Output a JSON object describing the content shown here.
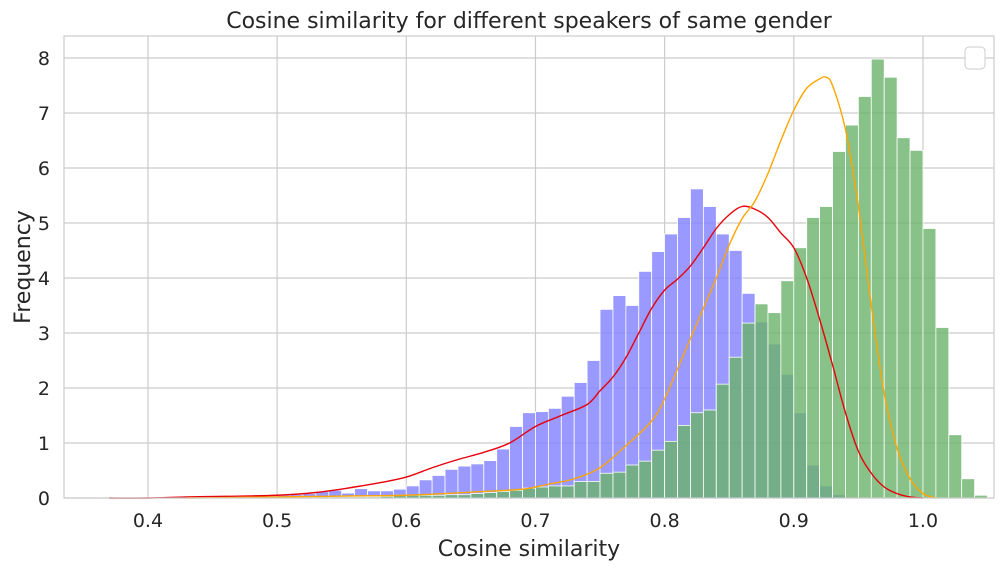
{
  "chart_data": {
    "type": "histogram",
    "title": "Cosine similarity for different speakers of same gender",
    "xlabel": "Cosine similarity",
    "ylabel": "Frequency",
    "xlim": [
      0.335,
      1.055
    ],
    "ylim": [
      0,
      8.4
    ],
    "xticks": [
      "0.4",
      "0.5",
      "0.6",
      "0.7",
      "0.8",
      "0.9",
      "1.0"
    ],
    "yticks": [
      "0",
      "1",
      "2",
      "3",
      "4",
      "5",
      "6",
      "7",
      "8"
    ],
    "grid": true,
    "legend": "top-right",
    "legend_entries": [],
    "bin_width": 0.01,
    "series": [
      {
        "color": "#8080ff",
        "bin_start": 0.36,
        "values": [
          0.01,
          0.01,
          0.01,
          0.01,
          0.01,
          0.01,
          0.02,
          0.02,
          0.02,
          0.02,
          0.02,
          0.02,
          0.03,
          0.04,
          0.05,
          0.06,
          0.08,
          0.12,
          0.14,
          0.09,
          0.17,
          0.13,
          0.13,
          0.16,
          0.22,
          0.33,
          0.41,
          0.52,
          0.58,
          0.62,
          0.68,
          0.89,
          1.3,
          1.55,
          1.57,
          1.63,
          1.85,
          2.1,
          2.5,
          3.43,
          3.68,
          3.5,
          4.12,
          4.48,
          4.8,
          5.1,
          5.62,
          5.3,
          4.8,
          4.5,
          3.72,
          3.2,
          2.8,
          2.25,
          1.55,
          0.6,
          0.22,
          0.06,
          0.02
        ]
      },
      {
        "color": "#6ab36a",
        "bin_start": 0.5,
        "values": [
          0.01,
          0.01,
          0.01,
          0.02,
          0.02,
          0.02,
          0.02,
          0.02,
          0.03,
          0.05,
          0.05,
          0.05,
          0.05,
          0.06,
          0.06,
          0.08,
          0.1,
          0.12,
          0.14,
          0.18,
          0.2,
          0.22,
          0.22,
          0.3,
          0.3,
          0.45,
          0.47,
          0.6,
          0.67,
          0.87,
          1.03,
          1.32,
          1.55,
          1.6,
          2.07,
          2.56,
          3.18,
          3.53,
          3.37,
          3.95,
          4.55,
          5.1,
          5.3,
          6.3,
          6.78,
          7.3,
          7.98,
          7.65,
          6.55,
          6.32,
          4.9,
          3.1,
          1.15,
          0.35,
          0.05,
          0.01
        ]
      }
    ],
    "kde": [
      {
        "color": "#e8000b",
        "x": [
          0.37,
          0.4,
          0.43,
          0.46,
          0.5,
          0.53,
          0.56,
          0.58,
          0.6,
          0.62,
          0.64,
          0.66,
          0.68,
          0.7,
          0.72,
          0.74,
          0.75,
          0.76,
          0.77,
          0.78,
          0.79,
          0.8,
          0.81,
          0.82,
          0.83,
          0.84,
          0.85,
          0.86,
          0.87,
          0.88,
          0.89,
          0.9,
          0.91,
          0.92,
          0.93,
          0.94,
          0.95,
          0.96,
          0.97,
          0.98,
          0.99,
          1.0
        ],
        "y": [
          0.0,
          0.0,
          0.02,
          0.03,
          0.05,
          0.1,
          0.2,
          0.28,
          0.38,
          0.55,
          0.7,
          0.83,
          1.0,
          1.3,
          1.5,
          1.7,
          1.95,
          2.2,
          2.55,
          3.0,
          3.45,
          3.78,
          3.98,
          4.22,
          4.55,
          4.9,
          5.15,
          5.3,
          5.25,
          5.1,
          4.82,
          4.55,
          4.0,
          3.25,
          2.42,
          1.55,
          0.85,
          0.45,
          0.2,
          0.08,
          0.02,
          0.0
        ]
      },
      {
        "color": "#ffa500",
        "x": [
          0.43,
          0.47,
          0.5,
          0.54,
          0.57,
          0.6,
          0.63,
          0.66,
          0.69,
          0.71,
          0.73,
          0.75,
          0.77,
          0.79,
          0.8,
          0.81,
          0.82,
          0.83,
          0.84,
          0.85,
          0.86,
          0.87,
          0.88,
          0.89,
          0.9,
          0.91,
          0.92,
          0.925,
          0.93,
          0.94,
          0.95,
          0.96,
          0.97,
          0.98,
          0.99,
          1.0,
          1.01
        ],
        "y": [
          0.0,
          0.01,
          0.02,
          0.03,
          0.04,
          0.05,
          0.08,
          0.12,
          0.16,
          0.25,
          0.35,
          0.55,
          0.95,
          1.4,
          1.8,
          2.35,
          2.9,
          3.45,
          4.0,
          4.6,
          5.08,
          5.4,
          5.9,
          6.5,
          7.05,
          7.45,
          7.62,
          7.65,
          7.5,
          6.7,
          5.3,
          3.5,
          1.9,
          0.9,
          0.35,
          0.08,
          0.0
        ]
      }
    ]
  }
}
